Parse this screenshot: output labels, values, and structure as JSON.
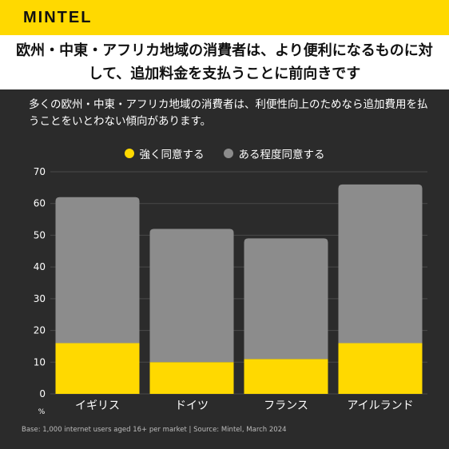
{
  "brand": {
    "logo": "MINTEL",
    "accent_color": "#ffd900"
  },
  "headline": "欧州・中東・アフリカ地域の消費者は、より便利になるものに対して、追加料金を支払うことに前向きです",
  "subtitle": "多くの欧州・中東・アフリカ地域の消費者は、利便性向上のためなら追加費用を払うことをいとわない傾向があります。",
  "footer": "Base: 1,000 internet users aged 16+ per market | Source: Mintel, March 2024",
  "chart_data": {
    "type": "bar",
    "stacked": true,
    "categories": [
      "イギリス",
      "ドイツ",
      "フランス",
      "アイルランド"
    ],
    "series": [
      {
        "name": "強く同意する",
        "color": "#ffd900",
        "values": [
          16,
          10,
          11,
          16
        ]
      },
      {
        "name": "ある程度同意する",
        "color": "#8c8c8c",
        "values": [
          46,
          42,
          38,
          50
        ]
      }
    ],
    "ylim": [
      0,
      70
    ],
    "yticks": [
      "0",
      "10",
      "20",
      "30",
      "40",
      "50",
      "60",
      "70"
    ],
    "y_unit": "%",
    "grid": true,
    "legend_position": "top-center"
  }
}
